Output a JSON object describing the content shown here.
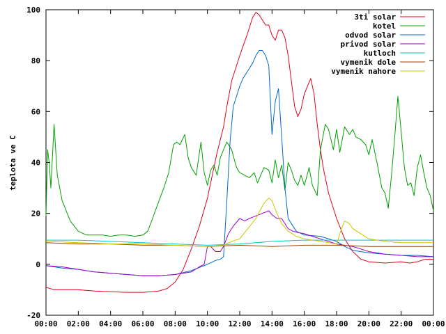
{
  "chart_data": {
    "type": "line",
    "xlabel": "",
    "ylabel": "teplota ve C",
    "ylim": [
      -20,
      100
    ],
    "xlim": [
      0,
      24
    ],
    "y_ticks": [
      -20,
      0,
      20,
      40,
      60,
      80,
      100
    ],
    "x_ticks": [
      {
        "value": 0,
        "label": "00:00"
      },
      {
        "value": 2,
        "label": "02:00"
      },
      {
        "value": 4,
        "label": "04:00"
      },
      {
        "value": 6,
        "label": "06:00"
      },
      {
        "value": 8,
        "label": "08:00"
      },
      {
        "value": 10,
        "label": "10:00"
      },
      {
        "value": 12,
        "label": "12:00"
      },
      {
        "value": 14,
        "label": "14:00"
      },
      {
        "value": 16,
        "label": "16:00"
      },
      {
        "value": 18,
        "label": "18:00"
      },
      {
        "value": 20,
        "label": "20:00"
      },
      {
        "value": 22,
        "label": "22:00"
      },
      {
        "value": 24,
        "label": "00:00"
      }
    ],
    "grid": false,
    "legend_position": "top-right",
    "series": [
      {
        "name": "3ti solar",
        "color": "#e0001c",
        "points": [
          [
            0,
            -9
          ],
          [
            0.5,
            -10
          ],
          [
            1,
            -10
          ],
          [
            2,
            -10
          ],
          [
            3,
            -10.5
          ],
          [
            4,
            -10.8
          ],
          [
            5,
            -11
          ],
          [
            6,
            -11
          ],
          [
            6.5,
            -10.8
          ],
          [
            7,
            -10.5
          ],
          [
            7.5,
            -9.5
          ],
          [
            8,
            -7
          ],
          [
            8.5,
            -2
          ],
          [
            9,
            6
          ],
          [
            9.5,
            15
          ],
          [
            10,
            26
          ],
          [
            10.3,
            35
          ],
          [
            10.6,
            44
          ],
          [
            11,
            54
          ],
          [
            11.2,
            62
          ],
          [
            11.5,
            72
          ],
          [
            12,
            82
          ],
          [
            12.5,
            91
          ],
          [
            12.8,
            97
          ],
          [
            13,
            99
          ],
          [
            13.2,
            98
          ],
          [
            13.4,
            96
          ],
          [
            13.6,
            94
          ],
          [
            13.8,
            94
          ],
          [
            14,
            90
          ],
          [
            14.2,
            88
          ],
          [
            14.4,
            92
          ],
          [
            14.6,
            92
          ],
          [
            14.8,
            89
          ],
          [
            15,
            82
          ],
          [
            15.2,
            72
          ],
          [
            15.4,
            62
          ],
          [
            15.6,
            58
          ],
          [
            15.8,
            61
          ],
          [
            16,
            67
          ],
          [
            16.2,
            70
          ],
          [
            16.4,
            73
          ],
          [
            16.6,
            67
          ],
          [
            16.8,
            55
          ],
          [
            17,
            45
          ],
          [
            17.2,
            37
          ],
          [
            17.5,
            28
          ],
          [
            18,
            18
          ],
          [
            18.5,
            10
          ],
          [
            19,
            5
          ],
          [
            19.5,
            2
          ],
          [
            20,
            1
          ],
          [
            21,
            0.5
          ],
          [
            22,
            1
          ],
          [
            22.5,
            0.5
          ],
          [
            23,
            1
          ],
          [
            23.5,
            2
          ],
          [
            24,
            2
          ]
        ]
      },
      {
        "name": "kotel",
        "color": "#00a000",
        "points": [
          [
            0,
            19
          ],
          [
            0.1,
            45
          ],
          [
            0.2,
            40
          ],
          [
            0.3,
            30
          ],
          [
            0.5,
            55
          ],
          [
            0.7,
            35
          ],
          [
            1,
            25
          ],
          [
            1.5,
            17
          ],
          [
            2,
            13
          ],
          [
            2.5,
            11.5
          ],
          [
            3,
            11.5
          ],
          [
            3.5,
            11.5
          ],
          [
            4,
            11
          ],
          [
            4.5,
            11.5
          ],
          [
            5,
            11.5
          ],
          [
            5.5,
            11
          ],
          [
            6,
            11.5
          ],
          [
            6.3,
            13
          ],
          [
            6.6,
            18
          ],
          [
            7,
            25
          ],
          [
            7.3,
            30
          ],
          [
            7.6,
            36
          ],
          [
            7.9,
            47
          ],
          [
            8.1,
            48
          ],
          [
            8.3,
            47
          ],
          [
            8.6,
            51
          ],
          [
            8.8,
            42
          ],
          [
            9,
            38
          ],
          [
            9.3,
            35
          ],
          [
            9.6,
            48
          ],
          [
            9.8,
            36
          ],
          [
            10,
            31
          ],
          [
            10.2,
            37
          ],
          [
            10.4,
            39
          ],
          [
            10.6,
            35
          ],
          [
            10.8,
            42
          ],
          [
            11,
            45
          ],
          [
            11.2,
            48
          ],
          [
            11.5,
            45
          ],
          [
            11.8,
            38
          ],
          [
            12,
            36
          ],
          [
            12.3,
            35
          ],
          [
            12.6,
            34
          ],
          [
            12.9,
            36
          ],
          [
            13.1,
            32
          ],
          [
            13.3,
            35
          ],
          [
            13.5,
            38
          ],
          [
            13.8,
            37
          ],
          [
            14,
            32
          ],
          [
            14.2,
            41
          ],
          [
            14.4,
            34
          ],
          [
            14.6,
            39
          ],
          [
            14.8,
            29
          ],
          [
            15,
            40
          ],
          [
            15.2,
            37
          ],
          [
            15.4,
            33
          ],
          [
            15.6,
            31
          ],
          [
            15.8,
            35
          ],
          [
            16,
            31
          ],
          [
            16.3,
            38
          ],
          [
            16.5,
            31
          ],
          [
            16.8,
            27
          ],
          [
            17,
            45
          ],
          [
            17.3,
            55
          ],
          [
            17.5,
            53
          ],
          [
            17.8,
            45
          ],
          [
            18,
            53
          ],
          [
            18.2,
            44
          ],
          [
            18.5,
            54
          ],
          [
            18.8,
            51
          ],
          [
            19,
            53
          ],
          [
            19.2,
            50
          ],
          [
            19.5,
            49
          ],
          [
            19.8,
            47
          ],
          [
            20,
            43
          ],
          [
            20.2,
            49
          ],
          [
            20.5,
            40
          ],
          [
            20.8,
            30
          ],
          [
            21,
            28
          ],
          [
            21.2,
            22
          ],
          [
            21.4,
            35
          ],
          [
            21.6,
            50
          ],
          [
            21.8,
            66
          ],
          [
            22,
            52
          ],
          [
            22.2,
            38
          ],
          [
            22.4,
            31
          ],
          [
            22.6,
            32
          ],
          [
            22.8,
            27
          ],
          [
            23,
            38
          ],
          [
            23.2,
            43
          ],
          [
            23.4,
            36
          ],
          [
            23.6,
            30
          ],
          [
            23.8,
            27
          ],
          [
            24,
            21
          ]
        ]
      },
      {
        "name": "odvod solar",
        "color": "#0068c8",
        "points": [
          [
            0,
            -0.5
          ],
          [
            1,
            -1.5
          ],
          [
            2,
            -2
          ],
          [
            3,
            -3
          ],
          [
            4,
            -3.5
          ],
          [
            5,
            -4
          ],
          [
            6,
            -4.5
          ],
          [
            7,
            -4.5
          ],
          [
            8,
            -4
          ],
          [
            9,
            -2.5
          ],
          [
            10,
            0
          ],
          [
            10.5,
            1.5
          ],
          [
            10.8,
            2
          ],
          [
            11,
            3
          ],
          [
            11.2,
            25
          ],
          [
            11.4,
            48
          ],
          [
            11.6,
            62
          ],
          [
            11.8,
            66
          ],
          [
            12,
            70
          ],
          [
            12.2,
            73
          ],
          [
            12.4,
            75
          ],
          [
            12.6,
            77
          ],
          [
            12.8,
            79
          ],
          [
            13,
            82
          ],
          [
            13.2,
            84
          ],
          [
            13.4,
            84
          ],
          [
            13.6,
            82
          ],
          [
            13.8,
            78
          ],
          [
            14,
            51
          ],
          [
            14.2,
            64
          ],
          [
            14.4,
            69
          ],
          [
            14.6,
            50
          ],
          [
            14.8,
            30
          ],
          [
            15,
            18
          ],
          [
            15.5,
            13
          ],
          [
            16,
            11.5
          ],
          [
            17,
            11
          ],
          [
            18,
            9
          ],
          [
            18.5,
            7
          ],
          [
            19,
            5.5
          ],
          [
            20,
            4.5
          ],
          [
            21,
            4
          ],
          [
            22,
            3.5
          ],
          [
            23,
            3.5
          ],
          [
            24,
            3
          ]
        ]
      },
      {
        "name": "privod solar",
        "color": "#a000c8",
        "points": [
          [
            0,
            -0.5
          ],
          [
            1,
            -1
          ],
          [
            2,
            -2
          ],
          [
            3,
            -3
          ],
          [
            4,
            -3.5
          ],
          [
            5,
            -4
          ],
          [
            6,
            -4.5
          ],
          [
            7,
            -4.5
          ],
          [
            8,
            -4
          ],
          [
            9,
            -3
          ],
          [
            9.5,
            -1
          ],
          [
            9.8,
            0
          ],
          [
            10,
            7
          ],
          [
            10.2,
            7
          ],
          [
            10.5,
            5
          ],
          [
            10.8,
            5
          ],
          [
            11,
            7
          ],
          [
            11.3,
            12
          ],
          [
            11.6,
            15
          ],
          [
            12,
            18
          ],
          [
            12.3,
            17
          ],
          [
            12.6,
            18
          ],
          [
            13,
            19
          ],
          [
            13.4,
            20
          ],
          [
            13.8,
            21
          ],
          [
            14,
            19.5
          ],
          [
            14.3,
            18
          ],
          [
            14.6,
            18
          ],
          [
            15,
            14
          ],
          [
            15.3,
            13
          ],
          [
            15.6,
            12.5
          ],
          [
            16,
            12
          ],
          [
            16.5,
            11
          ],
          [
            17,
            10
          ],
          [
            18,
            8
          ],
          [
            19,
            7
          ],
          [
            20,
            5
          ],
          [
            21,
            4
          ],
          [
            22,
            3.5
          ],
          [
            23,
            3
          ],
          [
            24,
            3
          ]
        ]
      },
      {
        "name": "kutloch",
        "color": "#00c8c8",
        "points": [
          [
            0,
            9.5
          ],
          [
            2,
            9.5
          ],
          [
            4,
            9
          ],
          [
            6,
            8.5
          ],
          [
            8,
            8
          ],
          [
            10,
            7.5
          ],
          [
            12,
            8
          ],
          [
            14,
            9
          ],
          [
            16,
            9.5
          ],
          [
            18,
            9.5
          ],
          [
            20,
            9.5
          ],
          [
            22,
            9.5
          ],
          [
            24,
            9.5
          ]
        ]
      },
      {
        "name": "vymenik dole",
        "color": "#a04000",
        "points": [
          [
            0,
            8.5
          ],
          [
            2,
            8
          ],
          [
            4,
            8
          ],
          [
            6,
            7.5
          ],
          [
            8,
            7.5
          ],
          [
            10,
            7
          ],
          [
            12,
            7.5
          ],
          [
            14,
            7
          ],
          [
            16,
            7.5
          ],
          [
            18,
            7.5
          ],
          [
            20,
            7
          ],
          [
            22,
            7
          ],
          [
            24,
            7
          ]
        ]
      },
      {
        "name": "vymenik nahore",
        "color": "#c8c800",
        "points": [
          [
            0,
            9
          ],
          [
            2,
            8.5
          ],
          [
            4,
            8
          ],
          [
            6,
            8
          ],
          [
            8,
            7.5
          ],
          [
            10,
            7
          ],
          [
            11,
            7.5
          ],
          [
            11.5,
            9
          ],
          [
            12,
            10
          ],
          [
            12.5,
            14
          ],
          [
            13,
            18
          ],
          [
            13.5,
            24
          ],
          [
            13.8,
            26
          ],
          [
            14,
            25
          ],
          [
            14.3,
            20
          ],
          [
            14.6,
            16
          ],
          [
            15,
            13
          ],
          [
            15.5,
            11
          ],
          [
            16,
            10
          ],
          [
            17,
            9
          ],
          [
            18,
            8
          ],
          [
            18.3,
            14
          ],
          [
            18.5,
            17
          ],
          [
            18.8,
            16
          ],
          [
            19,
            14
          ],
          [
            19.5,
            12
          ],
          [
            20,
            10
          ],
          [
            21,
            9
          ],
          [
            22,
            8.5
          ],
          [
            23,
            8.5
          ],
          [
            24,
            8.5
          ]
        ]
      }
    ]
  }
}
